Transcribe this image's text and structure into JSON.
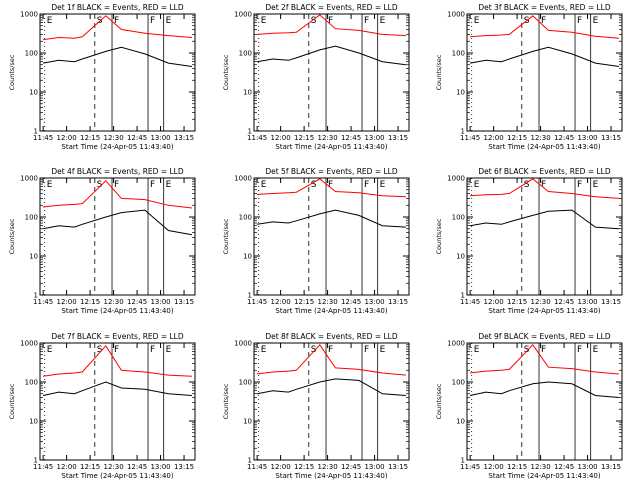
{
  "chart_data": [
    {
      "type": "line",
      "title": "Det 1f BLACK = Events, RED = LLD",
      "ylabel": "Counts/sec",
      "xlabel": "Start Time (24-Apr-05 11:43:40)",
      "xticks": [
        "11:45",
        "12:00",
        "12:15",
        "12:30",
        "12:45",
        "13:00",
        "13:15"
      ],
      "yticks": [
        "1",
        "10",
        "100",
        "1000"
      ],
      "yscale": "log",
      "ylim": [
        1,
        1000
      ],
      "xlim": [
        "11:43",
        "13:22"
      ],
      "markers": [
        {
          "label": "E",
          "time": "11:46"
        },
        {
          "label": "S",
          "time": "12:18"
        },
        {
          "label": "F",
          "time": "12:29"
        },
        {
          "label": "F",
          "time": "12:52"
        },
        {
          "label": "E",
          "time": "13:02"
        }
      ],
      "series": [
        {
          "name": "LLD",
          "color": "#ff0000",
          "x": [
            "11:45",
            "11:55",
            "12:05",
            "12:10",
            "12:25",
            "12:35",
            "12:50",
            "13:05",
            "13:20"
          ],
          "values": [
            220,
            250,
            240,
            260,
            900,
            400,
            320,
            280,
            250
          ]
        },
        {
          "name": "Events",
          "color": "#000000",
          "x": [
            "11:45",
            "11:55",
            "12:05",
            "12:10",
            "12:25",
            "12:35",
            "12:50",
            "13:05",
            "13:20"
          ],
          "values": [
            55,
            65,
            60,
            70,
            110,
            140,
            95,
            55,
            45
          ]
        }
      ]
    },
    {
      "type": "line",
      "title": "Det 2f BLACK = Events, RED = LLD",
      "ylabel": "Counts/sec",
      "xlabel": "Start Time (24-Apr-05 11:43:40)",
      "xticks": [
        "11:45",
        "12:00",
        "12:15",
        "12:30",
        "12:45",
        "13:00",
        "13:15"
      ],
      "yticks": [
        "1",
        "10",
        "100",
        "1000"
      ],
      "yscale": "log",
      "ylim": [
        1,
        1000
      ],
      "xlim": [
        "11:43",
        "13:22"
      ],
      "markers": [
        {
          "label": "E",
          "time": "11:46"
        },
        {
          "label": "S",
          "time": "12:18"
        },
        {
          "label": "F",
          "time": "12:29"
        },
        {
          "label": "F",
          "time": "12:52"
        },
        {
          "label": "E",
          "time": "13:02"
        }
      ],
      "series": [
        {
          "name": "LLD",
          "color": "#ff0000",
          "x": [
            "11:45",
            "11:55",
            "12:05",
            "12:10",
            "12:25",
            "12:35",
            "12:50",
            "13:05",
            "13:20"
          ],
          "values": [
            300,
            320,
            330,
            340,
            950,
            420,
            380,
            300,
            280
          ]
        },
        {
          "name": "Events",
          "color": "#000000",
          "x": [
            "11:45",
            "11:55",
            "12:05",
            "12:10",
            "12:25",
            "12:35",
            "12:50",
            "13:05",
            "13:20"
          ],
          "values": [
            60,
            70,
            65,
            75,
            120,
            150,
            100,
            60,
            50
          ]
        }
      ]
    },
    {
      "type": "line",
      "title": "Det 3f BLACK = Events, RED = LLD",
      "ylabel": "Counts/sec",
      "xlabel": "Start Time (24-Apr-05 11:43:40)",
      "xticks": [
        "11:45",
        "12:00",
        "12:15",
        "12:30",
        "12:45",
        "13:00",
        "13:15"
      ],
      "yticks": [
        "1",
        "10",
        "100",
        "1000"
      ],
      "yscale": "log",
      "ylim": [
        1,
        1000
      ],
      "xlim": [
        "11:43",
        "13:22"
      ],
      "markers": [
        {
          "label": "E",
          "time": "11:46"
        },
        {
          "label": "S",
          "time": "12:18"
        },
        {
          "label": "F",
          "time": "12:29"
        },
        {
          "label": "F",
          "time": "12:52"
        },
        {
          "label": "E",
          "time": "13:02"
        }
      ],
      "series": [
        {
          "name": "LLD",
          "color": "#ff0000",
          "x": [
            "11:45",
            "11:55",
            "12:05",
            "12:10",
            "12:25",
            "12:35",
            "12:50",
            "13:05",
            "13:20"
          ],
          "values": [
            260,
            280,
            290,
            300,
            900,
            380,
            340,
            270,
            240
          ]
        },
        {
          "name": "Events",
          "color": "#000000",
          "x": [
            "11:45",
            "11:55",
            "12:05",
            "12:10",
            "12:25",
            "12:35",
            "12:50",
            "13:05",
            "13:20"
          ],
          "values": [
            55,
            65,
            60,
            70,
            110,
            140,
            95,
            55,
            45
          ]
        }
      ]
    },
    {
      "type": "line",
      "title": "Det 4f BLACK = Events, RED = LLD",
      "ylabel": "Counts/sec",
      "xlabel": "Start Time (24-Apr-05 11:43:40)",
      "xticks": [
        "11:45",
        "12:00",
        "12:15",
        "12:30",
        "12:45",
        "13:00",
        "13:15"
      ],
      "yticks": [
        "1",
        "10",
        "100",
        "1000"
      ],
      "yscale": "log",
      "ylim": [
        1,
        1000
      ],
      "xlim": [
        "11:43",
        "13:22"
      ],
      "markers": [
        {
          "label": "E",
          "time": "11:46"
        },
        {
          "label": "S",
          "time": "12:18"
        },
        {
          "label": "F",
          "time": "12:29"
        },
        {
          "label": "F",
          "time": "12:52"
        },
        {
          "label": "E",
          "time": "13:02"
        }
      ],
      "series": [
        {
          "name": "LLD",
          "color": "#ff0000",
          "x": [
            "11:45",
            "11:55",
            "12:05",
            "12:10",
            "12:25",
            "12:35",
            "12:50",
            "13:05",
            "13:20"
          ],
          "values": [
            180,
            200,
            210,
            220,
            850,
            300,
            280,
            200,
            170
          ]
        },
        {
          "name": "Events",
          "color": "#000000",
          "x": [
            "11:45",
            "11:55",
            "12:05",
            "12:10",
            "12:25",
            "12:35",
            "12:50",
            "13:05",
            "13:20"
          ],
          "values": [
            50,
            60,
            55,
            65,
            100,
            130,
            150,
            45,
            35
          ]
        }
      ]
    },
    {
      "type": "line",
      "title": "Det 5f BLACK = Events, RED = LLD",
      "ylabel": "Counts/sec",
      "xlabel": "Start Time (24-Apr-05 11:43:40)",
      "xticks": [
        "11:45",
        "12:00",
        "12:15",
        "12:30",
        "12:45",
        "13:00",
        "13:15"
      ],
      "yticks": [
        "1",
        "10",
        "100",
        "1000"
      ],
      "yscale": "log",
      "ylim": [
        1,
        1000
      ],
      "xlim": [
        "11:43",
        "13:22"
      ],
      "markers": [
        {
          "label": "E",
          "time": "11:46"
        },
        {
          "label": "S",
          "time": "12:18"
        },
        {
          "label": "F",
          "time": "12:29"
        },
        {
          "label": "F",
          "time": "12:52"
        },
        {
          "label": "E",
          "time": "13:02"
        }
      ],
      "series": [
        {
          "name": "LLD",
          "color": "#ff0000",
          "x": [
            "11:45",
            "11:55",
            "12:05",
            "12:10",
            "12:25",
            "12:35",
            "12:50",
            "13:05",
            "13:20"
          ],
          "values": [
            380,
            400,
            420,
            430,
            950,
            450,
            420,
            350,
            330
          ]
        },
        {
          "name": "Events",
          "color": "#000000",
          "x": [
            "11:45",
            "11:55",
            "12:05",
            "12:10",
            "12:25",
            "12:35",
            "12:50",
            "13:05",
            "13:20"
          ],
          "values": [
            65,
            75,
            70,
            80,
            120,
            150,
            110,
            60,
            55
          ]
        }
      ]
    },
    {
      "type": "line",
      "title": "Det 6f BLACK = Events, RED = LLD",
      "ylabel": "Counts/sec",
      "xlabel": "Start Time (24-Apr-05 11:43:40)",
      "xticks": [
        "11:45",
        "12:00",
        "12:15",
        "12:30",
        "12:45",
        "13:00",
        "13:15"
      ],
      "yticks": [
        "1",
        "10",
        "100",
        "1000"
      ],
      "yscale": "log",
      "ylim": [
        1,
        1000
      ],
      "xlim": [
        "11:43",
        "13:22"
      ],
      "markers": [
        {
          "label": "E",
          "time": "11:46"
        },
        {
          "label": "S",
          "time": "12:18"
        },
        {
          "label": "F",
          "time": "12:29"
        },
        {
          "label": "F",
          "time": "12:52"
        },
        {
          "label": "E",
          "time": "13:02"
        }
      ],
      "series": [
        {
          "name": "LLD",
          "color": "#ff0000",
          "x": [
            "11:45",
            "11:55",
            "12:05",
            "12:10",
            "12:25",
            "12:35",
            "12:50",
            "13:05",
            "13:20"
          ],
          "values": [
            350,
            370,
            380,
            400,
            950,
            450,
            400,
            330,
            300
          ]
        },
        {
          "name": "Events",
          "color": "#000000",
          "x": [
            "11:45",
            "11:55",
            "12:05",
            "12:10",
            "12:25",
            "12:35",
            "12:50",
            "13:05",
            "13:20"
          ],
          "values": [
            60,
            70,
            65,
            75,
            110,
            140,
            150,
            55,
            50
          ]
        }
      ]
    },
    {
      "type": "line",
      "title": "Det 7f BLACK = Events, RED = LLD",
      "ylabel": "Counts/sec",
      "xlabel": "Start Time (24-Apr-05 11:43:40)",
      "xticks": [
        "11:45",
        "12:00",
        "12:15",
        "12:30",
        "12:45",
        "13:00",
        "13:15"
      ],
      "yticks": [
        "1",
        "10",
        "100",
        "1000"
      ],
      "yscale": "log",
      "ylim": [
        1,
        1000
      ],
      "xlim": [
        "11:43",
        "13:22"
      ],
      "markers": [
        {
          "label": "E",
          "time": "11:46"
        },
        {
          "label": "S",
          "time": "12:18"
        },
        {
          "label": "F",
          "time": "12:29"
        },
        {
          "label": "F",
          "time": "12:52"
        },
        {
          "label": "E",
          "time": "13:02"
        }
      ],
      "series": [
        {
          "name": "LLD",
          "color": "#ff0000",
          "x": [
            "11:45",
            "11:55",
            "12:05",
            "12:10",
            "12:25",
            "12:35",
            "12:50",
            "13:05",
            "13:20"
          ],
          "values": [
            140,
            160,
            170,
            180,
            850,
            200,
            180,
            150,
            140
          ]
        },
        {
          "name": "Events",
          "color": "#000000",
          "x": [
            "11:45",
            "11:55",
            "12:05",
            "12:10",
            "12:25",
            "12:35",
            "12:50",
            "13:05",
            "13:20"
          ],
          "values": [
            45,
            55,
            50,
            60,
            100,
            70,
            65,
            50,
            45
          ]
        }
      ]
    },
    {
      "type": "line",
      "title": "Det 8f BLACK = Events, RED = LLD",
      "ylabel": "Counts/sec",
      "xlabel": "Start Time (24-Apr-05 11:43:40)",
      "xticks": [
        "11:45",
        "12:00",
        "12:15",
        "12:30",
        "12:45",
        "13:00",
        "13:15"
      ],
      "yticks": [
        "1",
        "10",
        "100",
        "1000"
      ],
      "yscale": "log",
      "ylim": [
        1,
        1000
      ],
      "xlim": [
        "11:43",
        "13:22"
      ],
      "markers": [
        {
          "label": "E",
          "time": "11:46"
        },
        {
          "label": "S",
          "time": "12:18"
        },
        {
          "label": "F",
          "time": "12:29"
        },
        {
          "label": "F",
          "time": "12:52"
        },
        {
          "label": "E",
          "time": "13:02"
        }
      ],
      "series": [
        {
          "name": "LLD",
          "color": "#ff0000",
          "x": [
            "11:45",
            "11:55",
            "12:05",
            "12:10",
            "12:25",
            "12:35",
            "12:50",
            "13:05",
            "13:20"
          ],
          "values": [
            160,
            180,
            190,
            200,
            900,
            230,
            210,
            170,
            150
          ]
        },
        {
          "name": "Events",
          "color": "#000000",
          "x": [
            "11:45",
            "11:55",
            "12:05",
            "12:10",
            "12:25",
            "12:35",
            "12:50",
            "13:05",
            "13:20"
          ],
          "values": [
            50,
            60,
            55,
            65,
            100,
            120,
            110,
            50,
            45
          ]
        }
      ]
    },
    {
      "type": "line",
      "title": "Det 9f BLACK = Events, RED = LLD",
      "ylabel": "Counts/sec",
      "xlabel": "Start Time (24-Apr-05 11:43:40)",
      "xticks": [
        "11:45",
        "12:00",
        "12:15",
        "12:30",
        "12:45",
        "13:00",
        "13:15"
      ],
      "yticks": [
        "1",
        "10",
        "100",
        "1000"
      ],
      "yscale": "log",
      "ylim": [
        1,
        1000
      ],
      "xlim": [
        "11:43",
        "13:22"
      ],
      "markers": [
        {
          "label": "E",
          "time": "11:46"
        },
        {
          "label": "S",
          "time": "12:18"
        },
        {
          "label": "F",
          "time": "12:29"
        },
        {
          "label": "F",
          "time": "12:52"
        },
        {
          "label": "E",
          "time": "13:02"
        }
      ],
      "series": [
        {
          "name": "LLD",
          "color": "#ff0000",
          "x": [
            "11:45",
            "11:55",
            "12:05",
            "12:10",
            "12:25",
            "12:35",
            "12:50",
            "13:05",
            "13:20"
          ],
          "values": [
            170,
            190,
            200,
            210,
            900,
            240,
            220,
            180,
            160
          ]
        },
        {
          "name": "Events",
          "color": "#000000",
          "x": [
            "11:45",
            "11:55",
            "12:05",
            "12:10",
            "12:25",
            "12:35",
            "12:50",
            "13:05",
            "13:20"
          ],
          "values": [
            45,
            55,
            50,
            60,
            90,
            100,
            90,
            45,
            40
          ]
        }
      ]
    }
  ]
}
